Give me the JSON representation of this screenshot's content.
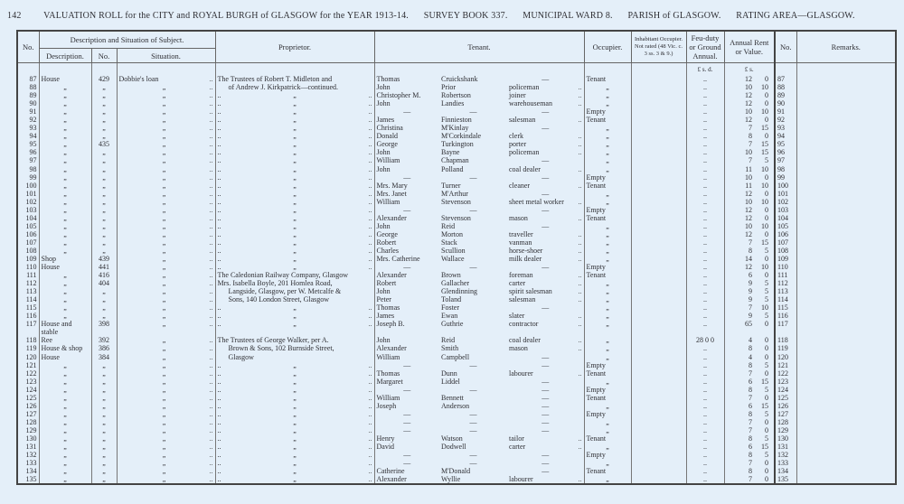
{
  "header": {
    "page_number": "142",
    "title": "VALUATION ROLL for the CITY and ROYAL BURGH of GLASGOW for the YEAR 1913-14.",
    "survey_book": "SURVEY BOOK 337.",
    "ward": "MUNICIPAL WARD 8.",
    "parish": "PARISH of GLASGOW.",
    "rating_area": "RATING AREA—GLASGOW."
  },
  "columns": {
    "no": "No.",
    "description_group": "Description and Situation of Subject.",
    "description": "Description.",
    "number": "No.",
    "situation": "Situation.",
    "proprietor": "Proprietor.",
    "tenant": "Tenant.",
    "occupier": "Occupier.",
    "inhabitant": "Inhabitant Occupier. Not rated (48 Vic. c. 3 ss. 3 & 9.)",
    "feu_duty": "Feu-duty or Ground Annual.",
    "annual_rent": "Annual Rent or Value.",
    "no_right": "No.",
    "remarks": "Remarks."
  },
  "units": {
    "feu": "£  s.  d.",
    "rent": "£  s."
  },
  "ditto": "„",
  "dots": "..",
  "rows": [
    {
      "no": "87",
      "desc": "House",
      "num": "429",
      "sit": "Dobbie's loan",
      "prop": "The Trustees of Robert T. Midleton and",
      "first": "Thomas",
      "surname": "Cruickshank",
      "occ": "—",
      "occupier": "Tenant",
      "feu": "..",
      "rent_l": "12",
      "rent_s": "0"
    },
    {
      "no": "88",
      "desc": "„",
      "num": "„",
      "sit": "„",
      "prop": "of Andrew J. Kirkpatrick—continued.",
      "first": "John",
      "surname": "Prior",
      "occ": "policeman",
      "occupier": "„",
      "feu": "..",
      "rent_l": "10",
      "rent_s": "10"
    },
    {
      "no": "89",
      "desc": "„",
      "num": "„",
      "sit": "„",
      "prop": "„",
      "first": "Christopher M.",
      "surname": "Robertson",
      "occ": "joiner",
      "occupier": "„",
      "feu": "..",
      "rent_l": "12",
      "rent_s": "0"
    },
    {
      "no": "90",
      "desc": "„",
      "num": "„",
      "sit": "„",
      "prop": "„",
      "first": "John",
      "surname": "Landies",
      "occ": "warehouseman",
      "occupier": "„",
      "feu": "..",
      "rent_l": "12",
      "rent_s": "0"
    },
    {
      "no": "91",
      "desc": "„",
      "num": "„",
      "sit": "„",
      "prop": "„",
      "first": "—",
      "surname": "—",
      "occ": "—",
      "occupier": "Empty",
      "feu": "..",
      "rent_l": "10",
      "rent_s": "10"
    },
    {
      "no": "92",
      "desc": "„",
      "num": "„",
      "sit": "„",
      "prop": "„",
      "first": "James",
      "surname": "Finnieston",
      "occ": "salesman",
      "occupier": "Tenant",
      "feu": "..",
      "rent_l": "12",
      "rent_s": "0"
    },
    {
      "no": "93",
      "desc": "„",
      "num": "„",
      "sit": "„",
      "prop": "„",
      "first": "Christina",
      "surname": "M'Kinlay",
      "occ": "—",
      "occupier": "„",
      "feu": "..",
      "rent_l": "7",
      "rent_s": "15"
    },
    {
      "no": "94",
      "desc": "„",
      "num": "„",
      "sit": "„",
      "prop": "„",
      "first": "Donald",
      "surname": "M'Corkindale",
      "occ": "clerk",
      "occupier": "„",
      "feu": "..",
      "rent_l": "8",
      "rent_s": "0"
    },
    {
      "no": "95",
      "desc": "„",
      "num": "435",
      "sit": "„",
      "prop": "„",
      "first": "George",
      "surname": "Turkington",
      "occ": "porter",
      "occupier": "„",
      "feu": "..",
      "rent_l": "7",
      "rent_s": "15"
    },
    {
      "no": "96",
      "desc": "„",
      "num": "„",
      "sit": "„",
      "prop": "„",
      "first": "John",
      "surname": "Bayne",
      "occ": "policeman",
      "occupier": "„",
      "feu": "..",
      "rent_l": "10",
      "rent_s": "15"
    },
    {
      "no": "97",
      "desc": "„",
      "num": "„",
      "sit": "„",
      "prop": "„",
      "first": "William",
      "surname": "Chapman",
      "occ": "—",
      "occupier": "„",
      "feu": "..",
      "rent_l": "7",
      "rent_s": "5"
    },
    {
      "no": "98",
      "desc": "„",
      "num": "„",
      "sit": "„",
      "prop": "„",
      "first": "John",
      "surname": "Polland",
      "occ": "coal dealer",
      "occupier": "„",
      "feu": "..",
      "rent_l": "11",
      "rent_s": "10"
    },
    {
      "no": "99",
      "desc": "„",
      "num": "„",
      "sit": "„",
      "prop": "„",
      "first": "—",
      "surname": "—",
      "occ": "—",
      "occupier": "Empty",
      "feu": "..",
      "rent_l": "10",
      "rent_s": "0"
    },
    {
      "no": "100",
      "desc": "„",
      "num": "„",
      "sit": "„",
      "prop": "„",
      "first": "Mrs. Mary",
      "surname": "Turner",
      "occ": "cleaner",
      "occupier": "Tenant",
      "feu": "..",
      "rent_l": "11",
      "rent_s": "10"
    },
    {
      "no": "101",
      "desc": "„",
      "num": "„",
      "sit": "„",
      "prop": "„",
      "first": "Mrs. Janet",
      "surname": "M'Arthur",
      "occ": "—",
      "occupier": "„",
      "feu": "..",
      "rent_l": "12",
      "rent_s": "0"
    },
    {
      "no": "102",
      "desc": "„",
      "num": "„",
      "sit": "„",
      "prop": "„",
      "first": "William",
      "surname": "Stevenson",
      "occ": "sheet metal worker",
      "occupier": "„",
      "feu": "..",
      "rent_l": "10",
      "rent_s": "10"
    },
    {
      "no": "103",
      "desc": "„",
      "num": "„",
      "sit": "„",
      "prop": "„",
      "first": "—",
      "surname": "—",
      "occ": "—",
      "occupier": "Empty",
      "feu": "..",
      "rent_l": "12",
      "rent_s": "0"
    },
    {
      "no": "104",
      "desc": "„",
      "num": "„",
      "sit": "„",
      "prop": "„",
      "first": "Alexander",
      "surname": "Stevenson",
      "occ": "mason",
      "occupier": "Tenant",
      "feu": "..",
      "rent_l": "12",
      "rent_s": "0"
    },
    {
      "no": "105",
      "desc": "„",
      "num": "„",
      "sit": "„",
      "prop": "„",
      "first": "John",
      "surname": "Reid",
      "occ": "—",
      "occupier": "„",
      "feu": "..",
      "rent_l": "10",
      "rent_s": "10"
    },
    {
      "no": "106",
      "desc": "„",
      "num": "„",
      "sit": "„",
      "prop": "„",
      "first": "George",
      "surname": "Morton",
      "occ": "traveller",
      "occupier": "„",
      "feu": "..",
      "rent_l": "12",
      "rent_s": "0"
    },
    {
      "no": "107",
      "desc": "„",
      "num": "„",
      "sit": "„",
      "prop": "„",
      "first": "Robert",
      "surname": "Stack",
      "occ": "vanman",
      "occupier": "„",
      "feu": "..",
      "rent_l": "7",
      "rent_s": "15"
    },
    {
      "no": "108",
      "desc": "„",
      "num": "„",
      "sit": "„",
      "prop": "„",
      "first": "Charles",
      "surname": "Scullion",
      "occ": "horse-shoer",
      "occupier": "„",
      "feu": "..",
      "rent_l": "8",
      "rent_s": "5"
    },
    {
      "no": "109",
      "desc": "Shop",
      "num": "439",
      "sit": "„",
      "prop": "„",
      "first": "Mrs. Catherine",
      "surname": "Wallace",
      "occ": "milk dealer",
      "occupier": "„",
      "feu": "..",
      "rent_l": "14",
      "rent_s": "0"
    },
    {
      "no": "110",
      "desc": "House",
      "num": "441",
      "sit": "„",
      "prop": "„",
      "first": "—",
      "surname": "—",
      "occ": "—",
      "occupier": "Empty",
      "feu": "..",
      "rent_l": "12",
      "rent_s": "10"
    },
    {
      "no": "111",
      "desc": "„",
      "num": "416",
      "sit": "„",
      "prop": "The Caledonian Railway Company, Glasgow",
      "first": "Alexander",
      "surname": "Brown",
      "occ": "foreman",
      "occupier": "Tenant",
      "feu": "..",
      "rent_l": "6",
      "rent_s": "0"
    },
    {
      "no": "112",
      "desc": "„",
      "num": "404",
      "sit": "„",
      "prop": "Mrs. Isabella Boyle, 201 Homlea Road,",
      "first": "Robert",
      "surname": "Gallacher",
      "occ": "carter",
      "occupier": "„",
      "feu": "..",
      "rent_l": "9",
      "rent_s": "5"
    },
    {
      "no": "113",
      "desc": "„",
      "num": "„",
      "sit": "„",
      "prop": "Langside, Glasgow, per W. Metcalfe &",
      "first": "John",
      "surname": "Glendinning",
      "occ": "spirit salesman",
      "occupier": "„",
      "feu": "..",
      "rent_l": "9",
      "rent_s": "5"
    },
    {
      "no": "114",
      "desc": "„",
      "num": "„",
      "sit": "„",
      "prop": "Sons, 140 London Street, Glasgow",
      "first": "Peter",
      "surname": "Toland",
      "occ": "salesman",
      "occupier": "„",
      "feu": "..",
      "rent_l": "9",
      "rent_s": "5"
    },
    {
      "no": "115",
      "desc": "„",
      "num": "„",
      "sit": "„",
      "prop": "„",
      "first": "Thomas",
      "surname": "Foster",
      "occ": "—",
      "occupier": "„",
      "feu": "..",
      "rent_l": "7",
      "rent_s": "10"
    },
    {
      "no": "116",
      "desc": "„",
      "num": "„",
      "sit": "„",
      "prop": "„",
      "first": "James",
      "surname": "Ewan",
      "occ": "slater",
      "occupier": "„",
      "feu": "..",
      "rent_l": "9",
      "rent_s": "5"
    },
    {
      "no": "117",
      "desc": "House and stable",
      "num": "398",
      "sit": "„",
      "prop": "„",
      "first": "Joseph B.",
      "surname": "Guthrie",
      "occ": "contractor",
      "occupier": "„",
      "feu": "..",
      "rent_l": "65",
      "rent_s": "0"
    },
    {
      "no": "118",
      "desc": "Ree",
      "num": "392",
      "sit": "„",
      "prop": "The Trustees of George Walker, per A.",
      "first": "John",
      "surname": "Reid",
      "occ": "coal dealer",
      "occupier": "„",
      "feu": "28  0  0",
      "rent_l": "4",
      "rent_s": "0"
    },
    {
      "no": "119",
      "desc": "House & shop",
      "num": "386",
      "sit": "„",
      "prop": "Brown & Sons, 102 Burnside Street,",
      "first": "Alexander",
      "surname": "Smith",
      "occ": "mason",
      "occupier": "„",
      "feu": "..",
      "rent_l": "8",
      "rent_s": "0"
    },
    {
      "no": "120",
      "desc": "House",
      "num": "384",
      "sit": "„",
      "prop": "Glasgow",
      "first": "William",
      "surname": "Campbell",
      "occ": "—",
      "occupier": "„",
      "feu": "..",
      "rent_l": "4",
      "rent_s": "0"
    },
    {
      "no": "121",
      "desc": "„",
      "num": "„",
      "sit": "„",
      "prop": "„",
      "first": "—",
      "surname": "—",
      "occ": "—",
      "occupier": "Empty",
      "feu": "..",
      "rent_l": "8",
      "rent_s": "5"
    },
    {
      "no": "122",
      "desc": "„",
      "num": "„",
      "sit": "„",
      "prop": "„",
      "first": "Thomas",
      "surname": "Dunn",
      "occ": "labourer",
      "occupier": "Tenant",
      "feu": "..",
      "rent_l": "7",
      "rent_s": "0"
    },
    {
      "no": "123",
      "desc": "„",
      "num": "„",
      "sit": "„",
      "prop": "„",
      "first": "Margaret",
      "surname": "Liddel",
      "occ": "—",
      "occupier": "„",
      "feu": "..",
      "rent_l": "6",
      "rent_s": "15"
    },
    {
      "no": "124",
      "desc": "„",
      "num": "„",
      "sit": "„",
      "prop": "„",
      "first": "—",
      "surname": "—",
      "occ": "—",
      "occupier": "Empty",
      "feu": "..",
      "rent_l": "8",
      "rent_s": "5"
    },
    {
      "no": "125",
      "desc": "„",
      "num": "„",
      "sit": "„",
      "prop": "„",
      "first": "William",
      "surname": "Bennett",
      "occ": "—",
      "occupier": "Tenant",
      "feu": "..",
      "rent_l": "7",
      "rent_s": "0"
    },
    {
      "no": "126",
      "desc": "„",
      "num": "„",
      "sit": "„",
      "prop": "„",
      "first": "Joseph",
      "surname": "Anderson",
      "occ": "—",
      "occupier": "„",
      "feu": "..",
      "rent_l": "6",
      "rent_s": "15"
    },
    {
      "no": "127",
      "desc": "„",
      "num": "„",
      "sit": "„",
      "prop": "„",
      "first": "—",
      "surname": "—",
      "occ": "—",
      "occupier": "Empty",
      "feu": "..",
      "rent_l": "8",
      "rent_s": "5"
    },
    {
      "no": "128",
      "desc": "„",
      "num": "„",
      "sit": "„",
      "prop": "„",
      "first": "—",
      "surname": "—",
      "occ": "—",
      "occupier": "„",
      "feu": "..",
      "rent_l": "7",
      "rent_s": "0"
    },
    {
      "no": "129",
      "desc": "„",
      "num": "„",
      "sit": "„",
      "prop": "„",
      "first": "—",
      "surname": "—",
      "occ": "—",
      "occupier": "„",
      "feu": "..",
      "rent_l": "7",
      "rent_s": "0"
    },
    {
      "no": "130",
      "desc": "„",
      "num": "„",
      "sit": "„",
      "prop": "„",
      "first": "Henry",
      "surname": "Watson",
      "occ": "tailor",
      "occupier": "Tenant",
      "feu": "..",
      "rent_l": "8",
      "rent_s": "5"
    },
    {
      "no": "131",
      "desc": "„",
      "num": "„",
      "sit": "„",
      "prop": "„",
      "first": "David",
      "surname": "Dodwell",
      "occ": "carter",
      "occupier": "„",
      "feu": "..",
      "rent_l": "6",
      "rent_s": "15"
    },
    {
      "no": "132",
      "desc": "„",
      "num": "„",
      "sit": "„",
      "prop": "„",
      "first": "—",
      "surname": "—",
      "occ": "—",
      "occupier": "Empty",
      "feu": "..",
      "rent_l": "8",
      "rent_s": "5"
    },
    {
      "no": "133",
      "desc": "„",
      "num": "„",
      "sit": "„",
      "prop": "„",
      "first": "—",
      "surname": "—",
      "occ": "—",
      "occupier": "„",
      "feu": "..",
      "rent_l": "7",
      "rent_s": "0"
    },
    {
      "no": "134",
      "desc": "„",
      "num": "„",
      "sit": "„",
      "prop": "„",
      "first": "Catherine",
      "surname": "M'Donald",
      "occ": "—",
      "occupier": "Tenant",
      "feu": "..",
      "rent_l": "8",
      "rent_s": "0"
    },
    {
      "no": "135",
      "desc": "„",
      "num": "„",
      "sit": "„",
      "prop": "„",
      "first": "Alexander",
      "surname": "Wyllie",
      "occ": "labourer",
      "occupier": "„",
      "feu": "..",
      "rent_l": "7",
      "rent_s": "0"
    }
  ]
}
